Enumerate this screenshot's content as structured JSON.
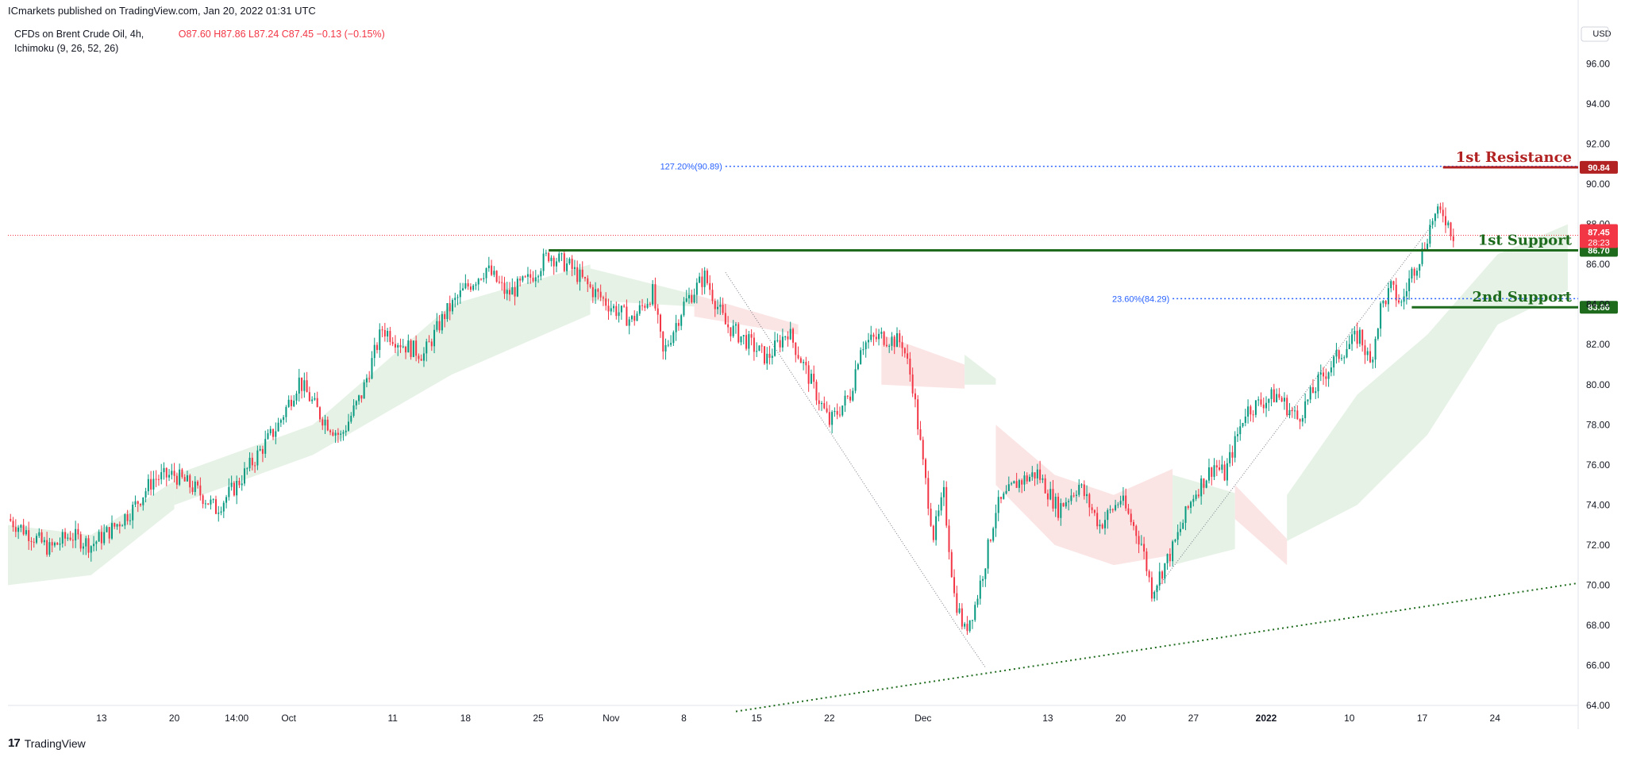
{
  "header": {
    "title": "ICmarkets published on TradingView.com, Jan 20, 2022 01:31 UTC"
  },
  "legend": {
    "symbol": "CFDs on Brent Crude Oil, 4h,",
    "indicator": "Ichimoku (9, 26, 52, 26)",
    "open": "O87.60",
    "high": "H87.86",
    "low": "L87.24",
    "close": "C87.45",
    "change": "−0.13 (−0.15%)"
  },
  "footer": {
    "brand": "TradingView"
  },
  "colors": {
    "up": "#089981",
    "down": "#f23645",
    "support": "#1e6b1e",
    "resistance": "#b22222",
    "fib": "#2962ff",
    "cloud_green": "#e6f2e6",
    "cloud_red": "#fbe4e4"
  },
  "chart_data": {
    "type": "candlestick",
    "currency": "USD",
    "ylim": [
      64,
      98
    ],
    "y_ticks": [
      "96.00",
      "94.00",
      "92.00",
      "90.00",
      "88.00",
      "86.00",
      "84.00",
      "82.00",
      "80.00",
      "78.00",
      "76.00",
      "74.00",
      "72.00",
      "70.00",
      "68.00",
      "66.00",
      "64.00"
    ],
    "x_ticks": [
      {
        "label": "13",
        "day": 13
      },
      {
        "label": "20",
        "day": 20
      },
      {
        "label": "14:00",
        "day": 26
      },
      {
        "label": "Oct",
        "day": 31
      },
      {
        "label": "11",
        "day": 41
      },
      {
        "label": "18",
        "day": 48
      },
      {
        "label": "25",
        "day": 55
      },
      {
        "label": "Nov",
        "day": 62
      },
      {
        "label": "8",
        "day": 69
      },
      {
        "label": "15",
        "day": 76
      },
      {
        "label": "22",
        "day": 83
      },
      {
        "label": "Dec",
        "day": 92
      },
      {
        "label": "13",
        "day": 104
      },
      {
        "label": "20",
        "day": 111
      },
      {
        "label": "27",
        "day": 118
      },
      {
        "label": "2022",
        "day": 125
      },
      {
        "label": "10",
        "day": 133
      },
      {
        "label": "17",
        "day": 140
      },
      {
        "label": "24",
        "day": 147
      }
    ],
    "x_range_days": [
      4,
      155
    ],
    "price_path": [
      [
        4,
        73.3
      ],
      [
        6,
        72.6
      ],
      [
        8,
        71.8
      ],
      [
        10,
        72.5
      ],
      [
        12,
        72.0
      ],
      [
        14,
        72.8
      ],
      [
        16,
        73.8
      ],
      [
        18,
        75.3
      ],
      [
        20,
        75.5
      ],
      [
        22,
        74.8
      ],
      [
        24,
        73.8
      ],
      [
        26,
        75.0
      ],
      [
        28,
        76.5
      ],
      [
        30,
        78.0
      ],
      [
        32,
        80.2
      ],
      [
        34,
        78.5
      ],
      [
        36,
        77.4
      ],
      [
        38,
        79.5
      ],
      [
        40,
        82.8
      ],
      [
        42,
        82.0
      ],
      [
        44,
        81.5
      ],
      [
        46,
        83.5
      ],
      [
        48,
        84.8
      ],
      [
        50,
        85.8
      ],
      [
        52,
        84.5
      ],
      [
        54,
        85.2
      ],
      [
        56,
        86.5
      ],
      [
        58,
        85.9
      ],
      [
        60,
        84.8
      ],
      [
        62,
        83.9
      ],
      [
        64,
        83.2
      ],
      [
        66,
        84.6
      ],
      [
        67,
        81.5
      ],
      [
        69,
        84.0
      ],
      [
        71,
        85.4
      ],
      [
        73,
        83.0
      ],
      [
        75,
        82.2
      ],
      [
        77,
        81.3
      ],
      [
        79,
        82.7
      ],
      [
        81,
        80.4
      ],
      [
        83,
        78.1
      ],
      [
        85,
        79.5
      ],
      [
        86,
        82.0
      ],
      [
        88,
        82.4
      ],
      [
        90,
        82.1
      ],
      [
        91,
        80.0
      ],
      [
        92,
        76.0
      ],
      [
        93,
        72.5
      ],
      [
        94,
        74.5
      ],
      [
        95,
        69.5
      ],
      [
        96,
        67.7
      ],
      [
        97,
        69.0
      ],
      [
        98,
        71.2
      ],
      [
        99,
        73.8
      ],
      [
        101,
        75.1
      ],
      [
        103,
        75.6
      ],
      [
        105,
        73.8
      ],
      [
        107,
        75.0
      ],
      [
        109,
        73.0
      ],
      [
        111,
        74.3
      ],
      [
        113,
        72.1
      ],
      [
        114,
        69.7
      ],
      [
        116,
        71.8
      ],
      [
        118,
        74.5
      ],
      [
        120,
        76.0
      ],
      [
        121,
        75.5
      ],
      [
        123,
        78.7
      ],
      [
        126,
        79.5
      ],
      [
        128,
        78.3
      ],
      [
        130,
        80.1
      ],
      [
        132,
        81.5
      ],
      [
        134,
        82.5
      ],
      [
        135,
        81.0
      ],
      [
        136,
        83.8
      ],
      [
        137,
        84.8
      ],
      [
        138,
        84.0
      ],
      [
        139,
        85.6
      ],
      [
        140,
        86.6
      ],
      [
        141,
        88.3
      ],
      [
        142,
        88.6
      ],
      [
        143,
        87.45
      ]
    ],
    "ichimoku_cloud": [
      {
        "from": 4,
        "to": 20,
        "top": [
          73.0,
          72.5,
          75.2
        ],
        "bottom": [
          70.0,
          70.5,
          73.8
        ],
        "color": "green"
      },
      {
        "from": 20,
        "to": 60,
        "top": [
          75.5,
          78.0,
          84.0,
          86.0
        ],
        "bottom": [
          74.0,
          76.5,
          80.5,
          83.5
        ],
        "color": "green"
      },
      {
        "from": 60,
        "to": 70,
        "top": [
          85.8,
          84.5
        ],
        "bottom": [
          84.2,
          83.9
        ],
        "color": "green"
      },
      {
        "from": 70,
        "to": 80,
        "top": [
          84.5,
          83.0
        ],
        "bottom": [
          83.4,
          82.5
        ],
        "color": "red"
      },
      {
        "from": 88,
        "to": 96,
        "top": [
          82.5,
          81.0
        ],
        "bottom": [
          80.0,
          79.8
        ],
        "color": "red"
      },
      {
        "from": 96,
        "to": 99,
        "top": [
          81.5,
          80.3
        ],
        "bottom": [
          80.0,
          80.0
        ],
        "color": "green"
      },
      {
        "from": 99,
        "to": 116,
        "top": [
          78.0,
          75.5,
          74.5,
          75.8
        ],
        "bottom": [
          75.0,
          72.0,
          71.0,
          71.5
        ],
        "color": "red"
      },
      {
        "from": 116,
        "to": 122,
        "top": [
          75.5,
          74.6
        ],
        "bottom": [
          71.0,
          71.8
        ],
        "color": "green"
      },
      {
        "from": 122,
        "to": 127,
        "top": [
          75.0,
          72.3
        ],
        "bottom": [
          73.3,
          71.0
        ],
        "color": "red"
      },
      {
        "from": 127,
        "to": 154,
        "top": [
          74.5,
          79.5,
          82.5,
          86.5,
          88.0
        ],
        "bottom": [
          72.2,
          74.0,
          77.5,
          83.0,
          84.7
        ],
        "color": "green"
      }
    ],
    "levels": [
      {
        "name": "1st Resistance",
        "price": 90.84,
        "label": "90.84",
        "color": "resistance",
        "from": 142
      },
      {
        "name": "1st Support",
        "price": 86.7,
        "label": "86.70",
        "color": "support",
        "from": 56
      },
      {
        "name": "2nd Support",
        "price": 83.86,
        "label": "83.86",
        "color": "support",
        "from": 139
      }
    ],
    "fib_levels": [
      {
        "label": "127.20%(90.89)",
        "price": 90.89,
        "from": 73,
        "to": 142
      },
      {
        "label": "23.60%(84.29)",
        "price": 84.29,
        "from": 116,
        "to": 140
      }
    ],
    "last_price": {
      "value": "87.45",
      "countdown": "28:23",
      "price": 87.45
    },
    "trendline": {
      "from": [
        74,
        63.7
      ],
      "to": [
        155,
        70.1
      ]
    },
    "swing_lines": [
      [
        [
          73,
          85.6
        ],
        [
          96,
          67.4
        ],
        [
          98,
          65.9
        ]
      ],
      [
        [
          114,
          69.5
        ],
        [
          141,
          88.0
        ]
      ]
    ]
  }
}
